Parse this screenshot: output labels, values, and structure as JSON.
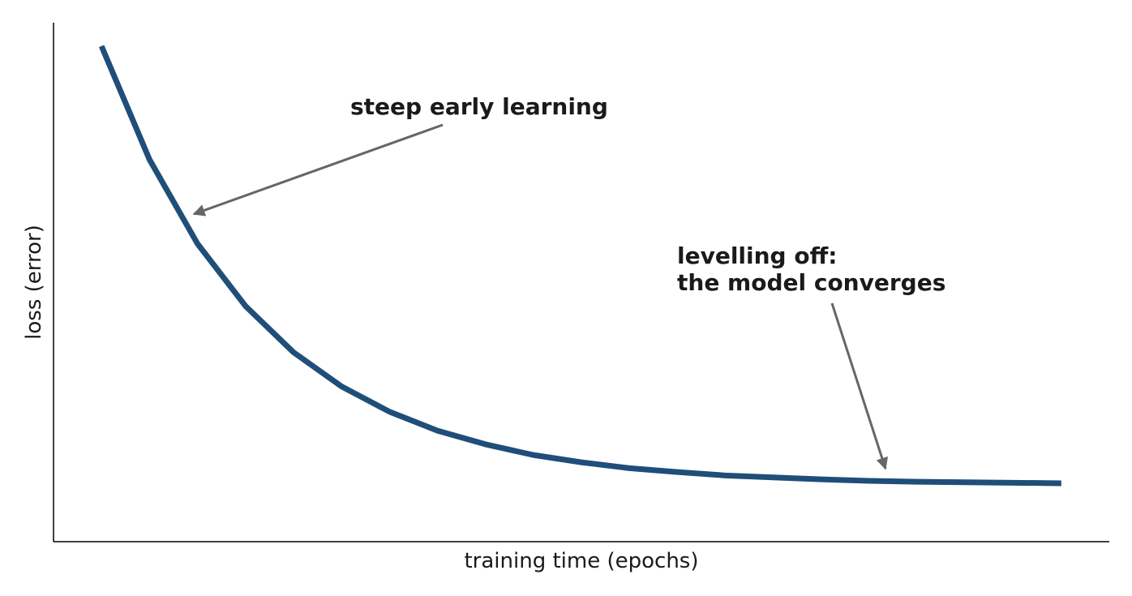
{
  "chart_data": {
    "type": "line",
    "x_label": "training time (epochs)",
    "y_label": "loss (error)",
    "x": [
      0,
      0.5,
      1,
      1.5,
      2,
      2.5,
      3,
      3.5,
      4,
      4.5,
      5,
      5.5,
      6,
      6.5,
      7,
      7.5,
      8,
      8.5,
      9,
      9.5,
      10
    ],
    "series": [
      {
        "color": "#1f4e79",
        "values": [
          1.0,
          0.767,
          0.594,
          0.466,
          0.371,
          0.301,
          0.249,
          0.21,
          0.182,
          0.16,
          0.145,
          0.133,
          0.125,
          0.118,
          0.114,
          0.11,
          0.107,
          0.105,
          0.104,
          0.103,
          0.102
        ]
      }
    ],
    "xlim": [
      -0.5,
      10.5
    ],
    "ylim": [
      -0.018,
      1.048
    ],
    "annotations": [
      {
        "text": [
          "steep early learning"
        ]
      },
      {
        "text": [
          "levelling off:",
          "the model converges"
        ]
      }
    ]
  }
}
